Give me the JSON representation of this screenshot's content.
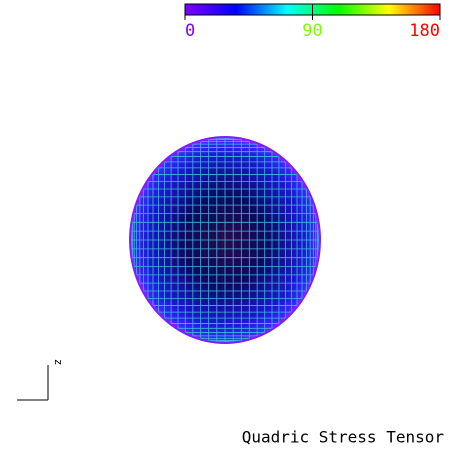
{
  "colorbar": {
    "range": [
      0,
      180
    ],
    "ticks": [
      0,
      90,
      180
    ],
    "stops": [
      "#7f00ff",
      "#0000ff",
      "#00ffff",
      "#00ff00",
      "#ffff00",
      "#ff0000"
    ],
    "label_colors": [
      "#8000ff",
      "#80ff00",
      "#ff0000"
    ]
  },
  "axis_label": "z",
  "title": "Quadric Stress Tensor"
}
